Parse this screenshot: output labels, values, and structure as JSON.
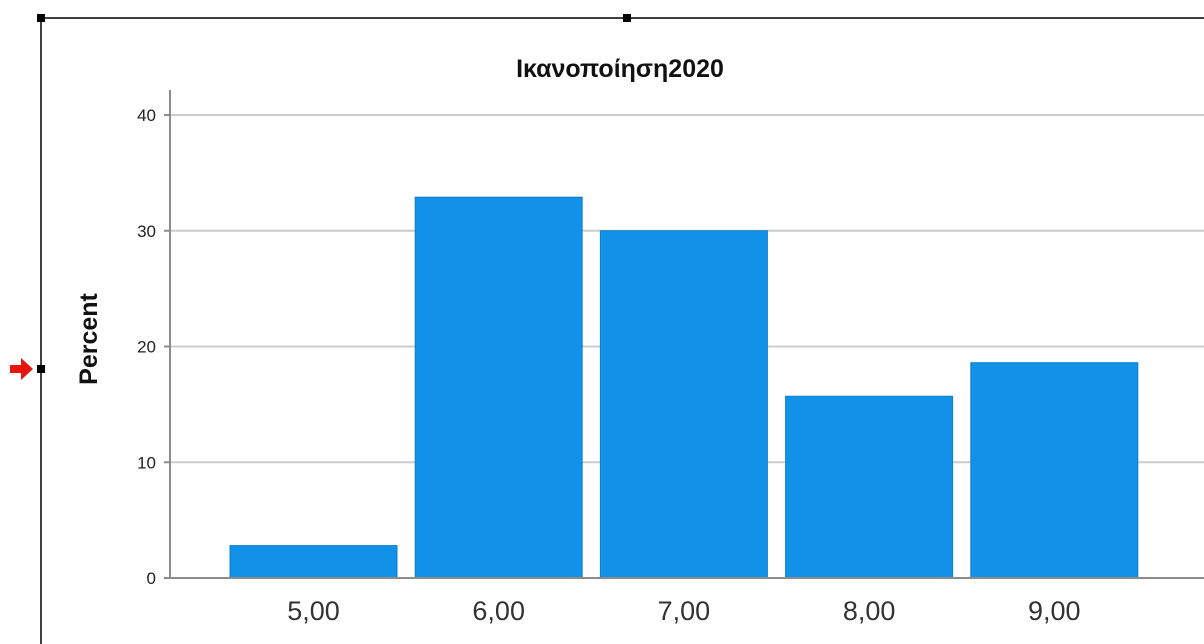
{
  "chart_data": {
    "type": "bar",
    "title": "Ικανοποίηση2020",
    "xlabel": "",
    "ylabel": "Percent",
    "categories": [
      "5,00",
      "6,00",
      "7,00",
      "8,00",
      "9,00"
    ],
    "values": [
      2.8,
      32.9,
      30.0,
      15.7,
      18.6
    ],
    "ylim": [
      0,
      40
    ],
    "yticks": [
      "0",
      "10",
      "20",
      "30",
      "40"
    ],
    "grid": true,
    "legend": "none",
    "bar_color": "#1192E8",
    "grid_color": "#CCCCCC",
    "axis_color": "#8C8C8C",
    "marker_color": "#E8150F"
  }
}
